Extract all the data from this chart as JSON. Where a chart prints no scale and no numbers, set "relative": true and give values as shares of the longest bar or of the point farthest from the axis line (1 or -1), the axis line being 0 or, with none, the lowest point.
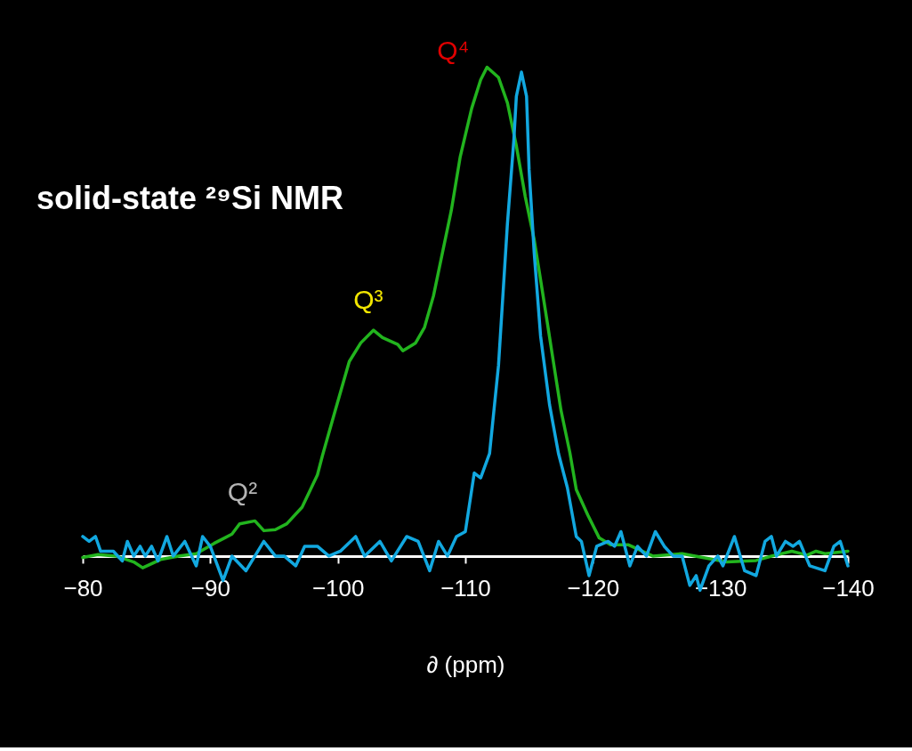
{
  "chart_data": {
    "type": "line",
    "title": "solid-state ²⁹Si NMR",
    "xlabel": "∂ (ppm)",
    "relative": true,
    "legend": false,
    "grid": false,
    "xlim": [
      -80,
      -140
    ],
    "xticks": [
      -80,
      -90,
      -100,
      -110,
      -120,
      -130,
      -140
    ],
    "annotations": [
      {
        "text": "Q²",
        "x": -93.5,
        "y": 0.072
      },
      {
        "text": "Q³",
        "x": -102.8,
        "y": 0.462
      },
      {
        "text": "Q⁴",
        "x": -111.7,
        "y": 1.0
      }
    ],
    "series": [
      {
        "color": "#22b41e",
        "x": [
          -80.0,
          -81.2,
          -82.6,
          -84.0,
          -84.7,
          -86.1,
          -87.5,
          -88.9,
          -90.3,
          -91.7,
          -92.3,
          -93.5,
          -94.2,
          -95.1,
          -96.0,
          -97.2,
          -98.4,
          -98.8,
          -99.8,
          -100.9,
          -101.8,
          -102.8,
          -103.5,
          -104.7,
          -105.1,
          -106.1,
          -106.8,
          -107.5,
          -108.2,
          -108.9,
          -109.6,
          -110.5,
          -111.2,
          -111.7,
          -112.6,
          -113.3,
          -114.0,
          -114.7,
          -115.4,
          -116.1,
          -116.8,
          -117.5,
          -118.2,
          -118.7,
          -119.6,
          -120.5,
          -121.4,
          -122.8,
          -124.7,
          -127.0,
          -128.6,
          -130.5,
          -132.8,
          -134.0,
          -135.6,
          -136.8,
          -137.5,
          -138.2,
          -140.0
        ],
        "values": [
          -0.003,
          0.003,
          0.0,
          -0.012,
          -0.024,
          -0.007,
          0.0,
          0.005,
          0.026,
          0.045,
          0.066,
          0.072,
          0.052,
          0.054,
          0.066,
          0.1,
          0.166,
          0.206,
          0.298,
          0.398,
          0.436,
          0.462,
          0.447,
          0.433,
          0.42,
          0.436,
          0.468,
          0.532,
          0.62,
          0.707,
          0.817,
          0.916,
          0.974,
          1.0,
          0.979,
          0.927,
          0.839,
          0.735,
          0.647,
          0.532,
          0.415,
          0.298,
          0.211,
          0.136,
          0.084,
          0.037,
          0.023,
          0.023,
          0.0,
          0.005,
          -0.003,
          -0.012,
          -0.009,
          0.0,
          0.01,
          0.002,
          0.01,
          0.005,
          0.01
        ]
      },
      {
        "color": "#12a8e0",
        "x": [
          -80.0,
          -80.5,
          -81.0,
          -81.4,
          -82.4,
          -83.1,
          -83.5,
          -84.0,
          -84.5,
          -84.9,
          -85.4,
          -85.9,
          -86.6,
          -87.1,
          -88.0,
          -88.9,
          -89.4,
          -90.0,
          -91.0,
          -91.7,
          -92.8,
          -94.2,
          -95.1,
          -95.8,
          -96.7,
          -97.4,
          -98.4,
          -99.3,
          -100.2,
          -101.4,
          -102.1,
          -103.3,
          -104.2,
          -105.4,
          -106.3,
          -107.2,
          -107.9,
          -108.6,
          -109.3,
          -110.0,
          -110.7,
          -111.2,
          -111.9,
          -112.6,
          -113.3,
          -113.8,
          -114.0,
          -114.4,
          -114.8,
          -115.0,
          -115.4,
          -115.9,
          -116.6,
          -117.3,
          -118.0,
          -118.7,
          -119.1,
          -119.7,
          -120.3,
          -121.2,
          -121.7,
          -122.2,
          -122.9,
          -123.5,
          -124.2,
          -124.9,
          -125.6,
          -126.3,
          -127.0,
          -127.6,
          -128.1,
          -128.4,
          -129.1,
          -129.8,
          -130.2,
          -131.1,
          -131.9,
          -132.8,
          -133.5,
          -134.0,
          -134.4,
          -135.1,
          -135.7,
          -136.2,
          -137.0,
          -138.2,
          -138.9,
          -139.4,
          -140.0
        ],
        "values": [
          0.04,
          0.03,
          0.04,
          0.01,
          0.01,
          -0.01,
          0.03,
          0.0,
          0.02,
          0.0,
          0.02,
          -0.01,
          0.04,
          0.0,
          0.03,
          -0.02,
          0.04,
          0.02,
          -0.05,
          0.0,
          -0.03,
          0.03,
          0.0,
          0.0,
          -0.02,
          0.02,
          0.02,
          0.0,
          0.01,
          0.04,
          0.0,
          0.03,
          -0.01,
          0.04,
          0.03,
          -0.03,
          0.03,
          0.0,
          0.04,
          0.05,
          0.17,
          0.16,
          0.21,
          0.39,
          0.68,
          0.85,
          0.94,
          0.99,
          0.94,
          0.79,
          0.62,
          0.45,
          0.31,
          0.21,
          0.14,
          0.04,
          0.03,
          -0.04,
          0.02,
          0.03,
          0.02,
          0.05,
          -0.02,
          0.02,
          0.0,
          0.05,
          0.02,
          0.0,
          0.0,
          -0.06,
          -0.04,
          -0.07,
          -0.02,
          0.0,
          -0.02,
          0.04,
          -0.03,
          -0.04,
          0.03,
          0.04,
          0.0,
          0.03,
          0.02,
          0.03,
          -0.02,
          -0.03,
          0.02,
          0.03,
          -0.02
        ]
      }
    ]
  }
}
